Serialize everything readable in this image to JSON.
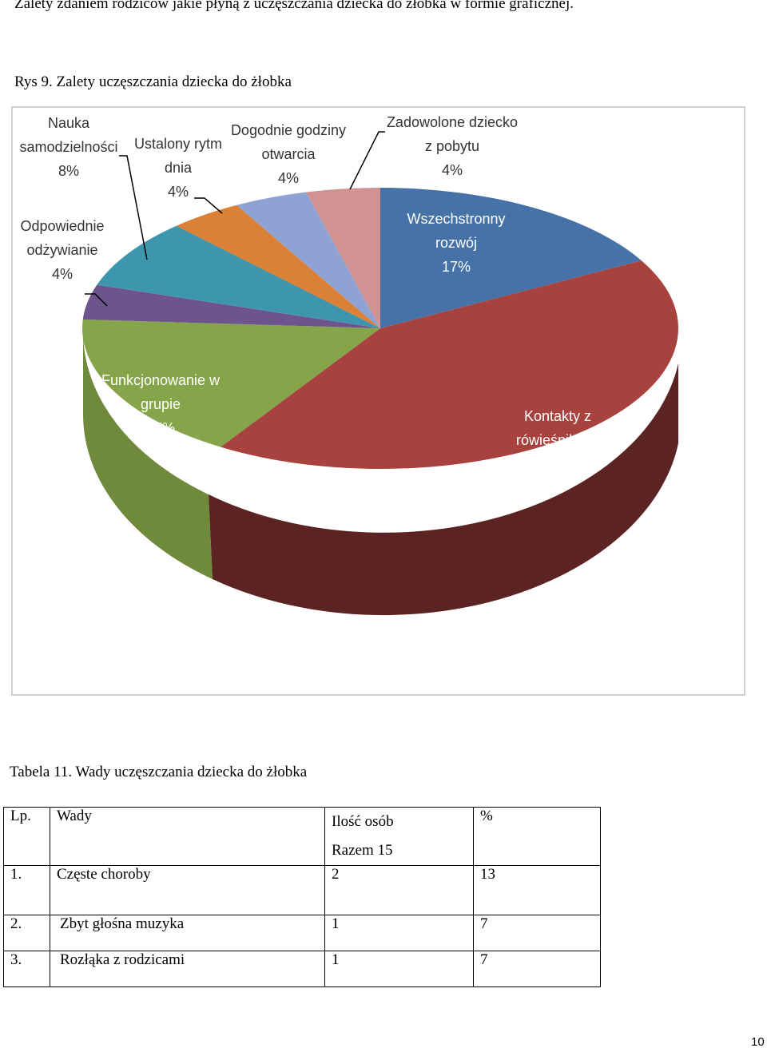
{
  "intro_text": "Zalety zdaniem rodziców jakie płyną z uczęszczania dziecka do żłobka w formie graficznej.",
  "figure_caption": "Rys 9. Zalety uczęszczania dziecka do żłobka",
  "chart_data": {
    "type": "pie",
    "slices": [
      {
        "label_lines": [
          "Wszechstronny",
          "rozwój",
          "17%"
        ],
        "value": 17,
        "color": "#4672a8"
      },
      {
        "label_lines": [
          "Kontakty z",
          "rówieśnikami",
          "42%"
        ],
        "value": 42,
        "color": "#a8423f"
      },
      {
        "label_lines": [
          "Funkcjonowanie w",
          "grupie",
          "17%"
        ],
        "value": 17,
        "color": "#86a44a"
      },
      {
        "label_lines": [
          "Odpowiednie",
          "odżywianie",
          "4%"
        ],
        "value": 4,
        "color": "#6e548d"
      },
      {
        "label_lines": [
          "Nauka",
          "samodzielności",
          "8%"
        ],
        "value": 8,
        "color": "#3d96ae"
      },
      {
        "label_lines": [
          "Ustalony rytm",
          "dnia",
          "4%"
        ],
        "value": 4,
        "color": "#da8137"
      },
      {
        "label_lines": [
          "Dogodnie godziny",
          "otwarcia",
          "4%"
        ],
        "value": 4,
        "color": "#8fa2d4"
      },
      {
        "label_lines": [
          "Zadowolone dziecko",
          "z pobytu",
          "4%"
        ],
        "value": 4,
        "color": "#d09392"
      }
    ]
  },
  "table_caption": "Tabela 11. Wady uczęszczania dziecka do żłobka",
  "table": {
    "header": {
      "lp": "Lp.",
      "wady": "Wady",
      "ilosc": "Ilość osób",
      "razem": "Razem 15",
      "pct": "%"
    },
    "rows": [
      {
        "lp": "1.",
        "wady": "Częste choroby",
        "ilosc": "2",
        "pct": "13"
      },
      {
        "lp": "2.",
        "wady": "Zbyt głośna muzyka",
        "ilosc": "1",
        "pct": "7"
      },
      {
        "lp": "3.",
        "wady": "Rozłąka z rodzicami",
        "ilosc": "1",
        "pct": "7"
      }
    ]
  },
  "page_number": "10"
}
